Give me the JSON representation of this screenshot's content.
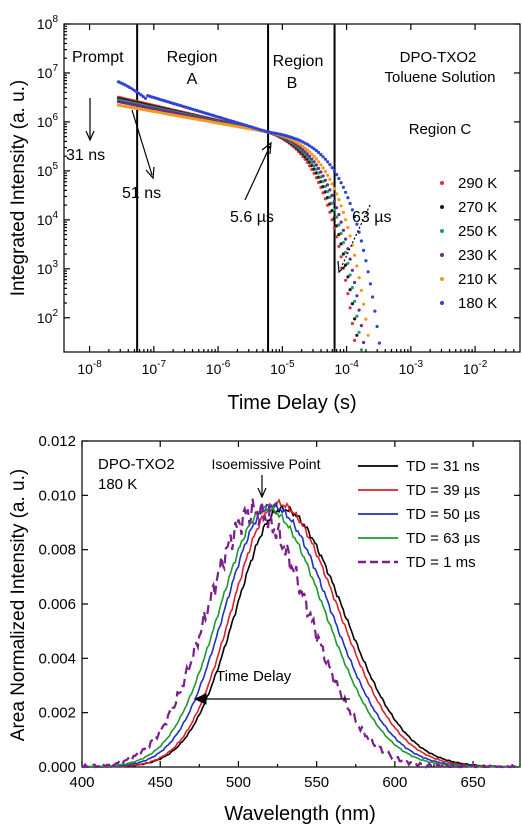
{
  "chart_data": [
    {
      "type": "scatter",
      "title": "",
      "xlabel": "Time Delay (s)",
      "ylabel": "Integrated Intensity (a. u.)",
      "xscale": "log",
      "yscale": "log",
      "xlim": [
        4e-09,
        0.05
      ],
      "ylim": [
        20,
        100000000.0
      ],
      "xtick_labels": [
        "10-8",
        "10-7",
        "10-6",
        "10-5",
        "10-4",
        "10-3",
        "10-2"
      ],
      "ytick_labels": [
        "102",
        "103",
        "104",
        "105",
        "106",
        "107",
        "108"
      ],
      "legend_position": "right",
      "annotations": {
        "sample": "DPO-TXO2",
        "solvent": "Toluene Solution",
        "prompt": "Prompt",
        "region_a_1": "Region",
        "region_a_2": "A",
        "region_b_1": "Region",
        "region_b_2": "B",
        "region_c": "Region C",
        "t31": "31 ns",
        "t51": "51 ns",
        "t56": "5.6 µs",
        "t63": "63 µs"
      },
      "region_boundaries_s": [
        5.5e-08,
        6e-06,
        6.5e-05
      ],
      "series": [
        {
          "name": "290 K",
          "color": "#e0303a",
          "tau": 1.3e-05,
          "kink": 1e-05,
          "start": 3200000.0
        },
        {
          "name": "270 K",
          "color": "#1a1a1a",
          "tau": 1.45e-05,
          "kink": 1.1e-05,
          "start": 3000000.0
        },
        {
          "name": "250 K",
          "color": "#1f9e6a",
          "tau": 1.6e-05,
          "kink": 1.2e-05,
          "start": 2800000.0
        },
        {
          "name": "230 K",
          "color": "#6b2a8c",
          "tau": 1.8e-05,
          "kink": 1.3e-05,
          "start": 2600000.0
        },
        {
          "name": "210 K",
          "color": "#f39a1c",
          "tau": 2.2e-05,
          "kink": 1.6e-05,
          "start": 2200000.0
        },
        {
          "name": "180 K",
          "color": "#2c43d9",
          "tau": 3.2e-05,
          "kink": 3e-05,
          "start": 5200000.0
        }
      ]
    },
    {
      "type": "line",
      "title": "",
      "xlabel": "Wavelength (nm)",
      "ylabel": "Area Normalized Intensity (a. u.)",
      "xlim": [
        400,
        680
      ],
      "ylim": [
        0.0,
        0.012
      ],
      "xtick_labels": [
        "400",
        "450",
        "500",
        "550",
        "600",
        "650"
      ],
      "ytick_labels": [
        "0.000",
        "0.002",
        "0.004",
        "0.006",
        "0.008",
        "0.010",
        "0.012"
      ],
      "legend_position": "top-right",
      "annotations": {
        "sample": "DPO-TXO2",
        "temperature": "180 K",
        "isoemissive": "Isoemissive Point",
        "time_delay": "Time Delay"
      },
      "series": [
        {
          "name": "TD = 31 ns",
          "color": "#000000",
          "dash": false,
          "peak": 528,
          "amp": 0.0095,
          "wl": 44,
          "wr": 58
        },
        {
          "name": "TD = 39 µs",
          "color": "#e0202a",
          "dash": false,
          "peak": 525,
          "amp": 0.0097,
          "wl": 43,
          "wr": 57
        },
        {
          "name": "TD = 50 µs",
          "color": "#2030c8",
          "dash": false,
          "peak": 521,
          "amp": 0.0096,
          "wl": 44,
          "wr": 56
        },
        {
          "name": "TD = 63 µs",
          "color": "#1c9a2c",
          "dash": false,
          "peak": 518,
          "amp": 0.0095,
          "wl": 45,
          "wr": 55
        },
        {
          "name": "TD = 1 ms",
          "color": "#7a1f8c",
          "dash": true,
          "peak": 510,
          "amp": 0.0094,
          "wl": 45,
          "wr": 52
        }
      ]
    }
  ]
}
